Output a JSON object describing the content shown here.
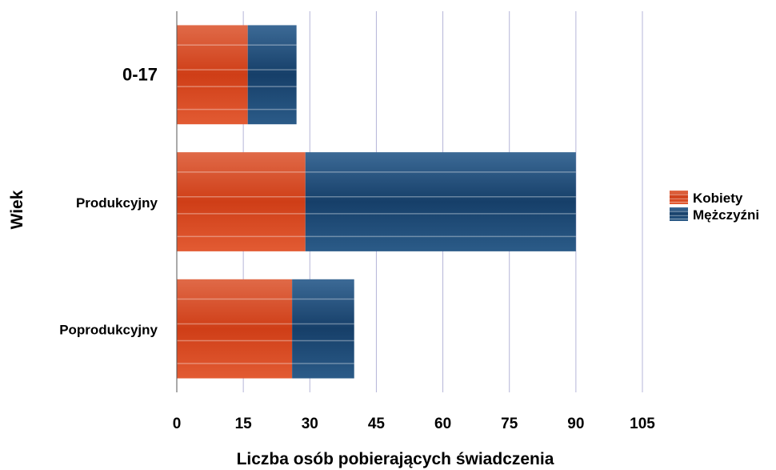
{
  "chart_data": {
    "type": "bar",
    "orientation": "horizontal",
    "stacked": true,
    "categories": [
      "0-17",
      "Produkcyjny",
      "Poprodukcyjny"
    ],
    "series": [
      {
        "name": "Kobiety",
        "values": [
          16,
          29,
          26
        ],
        "color": "#d9451e"
      },
      {
        "name": "Mężczyźni",
        "values": [
          11,
          61,
          14
        ],
        "color": "#1f4f7e"
      }
    ],
    "xlabel": "Liczba osób pobierających świadczenia",
    "ylabel": "Wiek",
    "xlim": [
      0,
      105
    ],
    "xticks": [
      "0",
      "15",
      "30",
      "45",
      "60",
      "75",
      "90",
      "105"
    ],
    "grid": "vertical",
    "legend": "right"
  }
}
